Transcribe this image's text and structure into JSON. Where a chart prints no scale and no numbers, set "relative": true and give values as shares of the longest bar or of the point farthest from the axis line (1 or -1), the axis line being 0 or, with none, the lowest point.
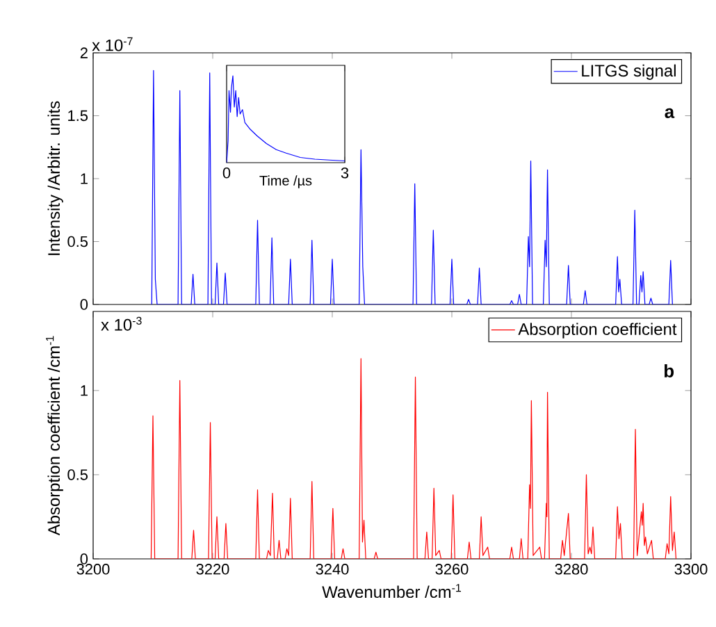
{
  "chart_data": [
    {
      "type": "line",
      "ylabel": "Intensity /Arbitr. units",
      "xlim": [
        3200,
        3300
      ],
      "ylim": [
        0,
        2
      ],
      "xticks": [
        3200,
        3220,
        3240,
        3260,
        3280,
        3300
      ],
      "yticks": [
        0,
        0.5,
        1,
        1.5,
        2
      ],
      "tick_labels": "y",
      "legend": "top right",
      "annotations": [
        "x 10$^{-7}$",
        "a"
      ],
      "x": [
        3209.8,
        3210.1,
        3210.4,
        3210.7,
        3214.2,
        3214.5,
        3214.8,
        3216.4,
        3216.7,
        3217.0,
        3219.2,
        3219.5,
        3219.8,
        3220.4,
        3220.7,
        3221.0,
        3221.8,
        3222.1,
        3222.4,
        3227.2,
        3227.5,
        3227.8,
        3229.6,
        3229.9,
        3230.2,
        3232.7,
        3233.0,
        3233.3,
        3236.3,
        3236.6,
        3236.9,
        3239.7,
        3240.0,
        3240.3,
        3244.5,
        3244.8,
        3245.1,
        3245.4,
        3253.5,
        3253.8,
        3254.1,
        3256.6,
        3256.9,
        3257.2,
        3259.7,
        3260.0,
        3260.3,
        3262.5,
        3262.8,
        3263.1,
        3264.3,
        3264.6,
        3264.9,
        3269.7,
        3270.0,
        3270.3,
        3271.0,
        3271.3,
        3271.6,
        3272.5,
        3272.8,
        3273.0,
        3273.2,
        3273.5,
        3275.3,
        3275.6,
        3275.8,
        3276.0,
        3276.3,
        3279.2,
        3279.5,
        3279.8,
        3282.0,
        3282.3,
        3282.6,
        3287.4,
        3287.7,
        3287.9,
        3288.1,
        3288.4,
        3290.3,
        3290.6,
        3290.9,
        3291.3,
        3291.6,
        3291.8,
        3292.0,
        3292.3,
        3293.0,
        3293.3,
        3293.6,
        3296.3,
        3296.6,
        3296.9
      ],
      "series": [
        {
          "name": "LITGS signal",
          "color": "#0000ff",
          "values": [
            0,
            1.86,
            0.2,
            0,
            0,
            1.7,
            0,
            0,
            0.24,
            0,
            0,
            1.84,
            0,
            0,
            0.33,
            0,
            0,
            0.25,
            0,
            0,
            0.67,
            0,
            0,
            0.53,
            0,
            0,
            0.36,
            0,
            0,
            0.51,
            0,
            0,
            0.36,
            0,
            0,
            1.23,
            0.3,
            0,
            0,
            0.96,
            0,
            0,
            0.59,
            0,
            0,
            0.36,
            0,
            0,
            0.04,
            0,
            0,
            0.29,
            0,
            0,
            0.03,
            0,
            0,
            0.08,
            0,
            0,
            0.54,
            0.3,
            1.14,
            0,
            0,
            0.51,
            0.3,
            1.07,
            0,
            0,
            0.31,
            0,
            0,
            0.11,
            0,
            0,
            0.38,
            0.1,
            0.2,
            0,
            0,
            0.75,
            0,
            0,
            0.23,
            0.1,
            0.26,
            0,
            0,
            0.05,
            0,
            0,
            0.35,
            0
          ]
        }
      ]
    },
    {
      "type": "line",
      "relative": true,
      "xlabel": "Time /µs",
      "xlim": [
        0,
        3
      ],
      "xticks": [
        0,
        3
      ],
      "tick_labels": "x",
      "x": [
        0,
        0.037,
        0.061,
        0.098,
        0.122,
        0.159,
        0.195,
        0.232,
        0.268,
        0.305,
        0.342,
        0.403,
        0.464,
        0.586,
        0.769,
        1.01,
        1.26,
        1.51,
        1.87,
        2.24,
        2.61,
        3.0
      ],
      "series": [
        {
          "color": "#0000ff",
          "values": [
            0,
            0.25,
            0.83,
            0.58,
            0.86,
            1,
            0.64,
            0.83,
            0.53,
            0.75,
            0.56,
            0.61,
            0.46,
            0.39,
            0.31,
            0.22,
            0.15,
            0.11,
            0.06,
            0.04,
            0.03,
            0.02
          ]
        }
      ]
    },
    {
      "type": "line",
      "xlabel": "Wavenumber /cm$^{-1}$",
      "ylabel": "Absorption coefficient /cm$^{-1}$",
      "xlim": [
        3200,
        3300
      ],
      "ylim": [
        0,
        1.47
      ],
      "xticks": [
        3200,
        3220,
        3240,
        3260,
        3280,
        3300
      ],
      "yticks": [
        0,
        0.5,
        1
      ],
      "legend": "top right",
      "annotations": [
        "x 10$^{-3}$",
        "b"
      ],
      "x": [
        3209.7,
        3210.0,
        3210.3,
        3214.2,
        3214.5,
        3214.8,
        3216.5,
        3216.8,
        3217.1,
        3219.3,
        3219.6,
        3219.9,
        3220.4,
        3220.7,
        3221.0,
        3221.9,
        3222.2,
        3222.5,
        3227.2,
        3227.5,
        3227.8,
        3229.0,
        3229.3,
        3229.65,
        3230.0,
        3230.3,
        3230.8,
        3231.1,
        3231.4,
        3232.1,
        3232.4,
        3232.7,
        3233.0,
        3233.3,
        3236.3,
        3236.6,
        3236.9,
        3239.8,
        3240.1,
        3240.4,
        3241.5,
        3241.8,
        3242.1,
        3244.5,
        3244.8,
        3245.05,
        3245.3,
        3245.6,
        3247.0,
        3247.3,
        3247.6,
        3253.6,
        3253.9,
        3254.2,
        3255.5,
        3255.8,
        3256.1,
        3256.7,
        3257.0,
        3257.3,
        3257.9,
        3258.2,
        3259.9,
        3260.2,
        3260.5,
        3262.6,
        3262.9,
        3263.2,
        3264.6,
        3264.9,
        3265.2,
        3266.0,
        3266.3,
        3269.7,
        3270.0,
        3270.3,
        3271.3,
        3271.6,
        3271.9,
        3272.7,
        3273.0,
        3273.15,
        3273.3,
        3273.6,
        3274.7,
        3275.0,
        3275.5,
        3275.8,
        3275.9,
        3276.0,
        3276.3,
        3278.2,
        3278.5,
        3278.8,
        3279.5,
        3279.8,
        3282.2,
        3282.5,
        3282.8,
        3283.1,
        3283.35,
        3283.6,
        3283.9,
        3287.4,
        3287.7,
        3287.95,
        3288.2,
        3288.5,
        3290.4,
        3290.7,
        3291.0,
        3291.7,
        3291.85,
        3292.0,
        3292.2,
        3292.4,
        3292.7,
        3293.4,
        3293.7,
        3295.7,
        3296.0,
        3296.3,
        3296.6,
        3296.9,
        3297.2,
        3297.5
      ],
      "series": [
        {
          "name": "Absorption coefficient",
          "color": "#ff0000",
          "values": [
            0,
            0.85,
            0,
            0,
            1.06,
            0,
            0,
            0.17,
            0,
            0,
            0.81,
            0,
            0,
            0.25,
            0,
            0,
            0.21,
            0,
            0,
            0.41,
            0,
            0,
            0.05,
            0.02,
            0.39,
            0,
            0,
            0.11,
            0,
            0,
            0.06,
            0.02,
            0.36,
            0,
            0,
            0.46,
            0,
            0,
            0.3,
            0,
            0,
            0.06,
            0,
            0,
            1.19,
            0.1,
            0.23,
            0,
            0,
            0.04,
            0,
            0,
            1.08,
            0,
            0,
            0.16,
            0,
            0,
            0.42,
            0.02,
            0.05,
            0,
            0,
            0.38,
            0,
            0,
            0.1,
            0,
            0,
            0.25,
            0.02,
            0.07,
            0,
            0,
            0.07,
            0,
            0,
            0.12,
            0,
            0,
            0.44,
            0.3,
            0.94,
            0.02,
            0.07,
            0,
            0,
            0.33,
            0.25,
            0.99,
            0,
            0,
            0.11,
            0.02,
            0.27,
            0,
            0,
            0.5,
            0.03,
            0.07,
            0.03,
            0.19,
            0,
            0,
            0.31,
            0.12,
            0.21,
            0,
            0,
            0.77,
            0.02,
            0.28,
            0.2,
            0.33,
            0.08,
            0.13,
            0.03,
            0.11,
            0,
            0,
            0.09,
            0.03,
            0.37,
            0.05,
            0.16,
            0
          ]
        }
      ]
    }
  ]
}
